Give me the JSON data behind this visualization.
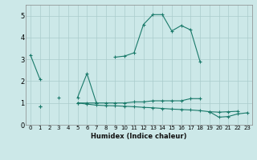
{
  "x": [
    0,
    1,
    2,
    3,
    4,
    5,
    6,
    7,
    8,
    9,
    10,
    11,
    12,
    13,
    14,
    15,
    16,
    17,
    18,
    19,
    20,
    21,
    22,
    23
  ],
  "line1": [
    3.2,
    2.1,
    null,
    null,
    null,
    1.25,
    2.35,
    1.0,
    null,
    3.1,
    3.15,
    3.3,
    4.6,
    5.05,
    5.05,
    4.3,
    4.55,
    4.35,
    2.9,
    null,
    null,
    null,
    null,
    null
  ],
  "line2": [
    null,
    0.85,
    null,
    1.25,
    null,
    1.0,
    1.0,
    1.0,
    1.0,
    1.0,
    1.0,
    1.05,
    1.05,
    1.1,
    1.1,
    1.1,
    1.1,
    1.2,
    1.2,
    null,
    null,
    null,
    null,
    null
  ],
  "line3": [
    null,
    0.85,
    null,
    null,
    null,
    1.0,
    0.95,
    0.9,
    0.88,
    0.87,
    0.85,
    0.83,
    0.8,
    0.78,
    0.75,
    0.72,
    0.7,
    0.68,
    0.65,
    0.6,
    0.58,
    0.6,
    0.62,
    null
  ],
  "line4": [
    null,
    null,
    null,
    null,
    null,
    null,
    null,
    null,
    null,
    null,
    null,
    null,
    null,
    null,
    null,
    null,
    null,
    null,
    null,
    0.6,
    0.35,
    0.38,
    0.5,
    0.55
  ],
  "bg_color": "#cce8e8",
  "grid_color": "#aacccc",
  "line_color": "#1a7a6a",
  "xlabel": "Humidex (Indice chaleur)",
  "ylim": [
    0,
    5.5
  ],
  "xlim": [
    -0.5,
    23.5
  ],
  "xticks": [
    0,
    1,
    2,
    3,
    4,
    5,
    6,
    7,
    8,
    9,
    10,
    11,
    12,
    13,
    14,
    15,
    16,
    17,
    18,
    19,
    20,
    21,
    22,
    23
  ],
  "yticks": [
    0,
    1,
    2,
    3,
    4,
    5
  ]
}
